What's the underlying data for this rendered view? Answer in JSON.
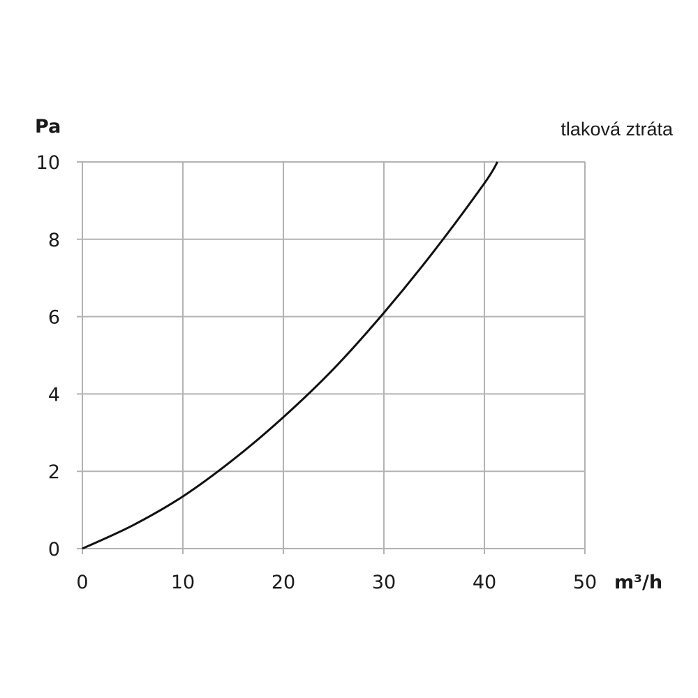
{
  "chart_data": {
    "type": "line",
    "title": "tlaková ztráta",
    "ylabel": "Pa",
    "xlabel": "m³/h",
    "xlim": [
      0,
      50
    ],
    "ylim": [
      0,
      10
    ],
    "x_ticks": [
      "0",
      "10",
      "20",
      "30",
      "40",
      "50"
    ],
    "y_ticks": [
      "0",
      "2",
      "4",
      "6",
      "8",
      "10"
    ],
    "grid": true,
    "line_color": "#111111",
    "grid_color": "#b3b3b3",
    "series": [
      {
        "x": [
          0,
          5,
          10,
          15,
          20,
          25,
          30,
          35,
          40,
          41.3
        ],
        "values": [
          0,
          0.6,
          1.35,
          2.3,
          3.4,
          4.65,
          6.1,
          7.7,
          9.45,
          10
        ]
      }
    ]
  }
}
